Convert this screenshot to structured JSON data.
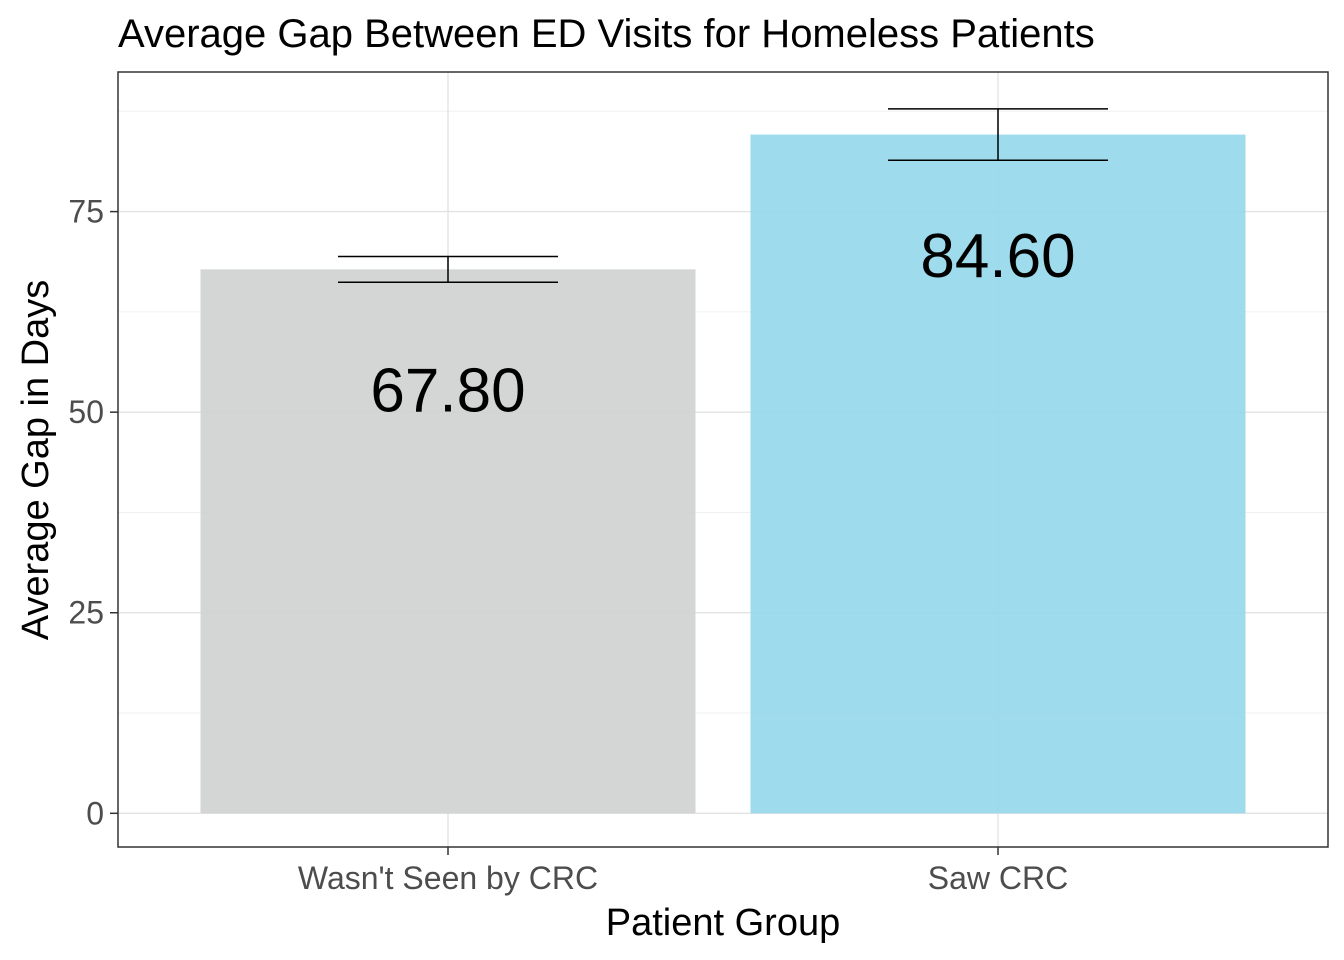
{
  "chart_data": {
    "type": "bar",
    "title": "Average Gap Between ED Visits for Homeless Patients",
    "xlabel": "Patient Group",
    "ylabel": "Average Gap in Days",
    "categories": [
      "Wasn't Seen by CRC",
      "Saw CRC"
    ],
    "values": [
      67.8,
      84.6
    ],
    "value_labels": [
      "67.80",
      "84.60"
    ],
    "error_bars": [
      {
        "low": 66.2,
        "high": 69.4
      },
      {
        "low": 81.4,
        "high": 87.8
      }
    ],
    "bar_colors": [
      "#d0d2d1",
      "#96d8ea"
    ],
    "ylim": [
      -4.2,
      92.4
    ],
    "yticks": [
      0,
      25,
      50,
      75
    ],
    "ytick_labels": [
      "0",
      "25",
      "50",
      "75"
    ],
    "grid": true,
    "theme": "bw"
  }
}
